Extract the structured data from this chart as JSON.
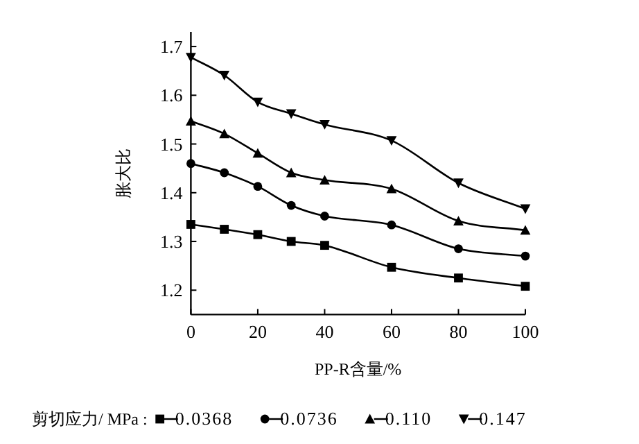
{
  "chart_data": {
    "type": "line",
    "xlabel": "PP-R含量/%",
    "ylabel": "胀大比",
    "legend_title": "剪切应力/ MPa :",
    "legend": "bottom",
    "grid": false,
    "xlim": [
      0,
      100
    ],
    "ylim": [
      1.15,
      1.73
    ],
    "xticks": [
      0,
      20,
      40,
      60,
      80,
      100
    ],
    "yticks": [
      1.2,
      1.3,
      1.4,
      1.5,
      1.6,
      1.7
    ],
    "series": [
      {
        "name": "0.0368",
        "color": "#000000",
        "marker": "square",
        "x": [
          0,
          10,
          20,
          30,
          40,
          60,
          80,
          100
        ],
        "values": [
          1.335,
          1.325,
          1.314,
          1.3,
          1.292,
          1.247,
          1.225,
          1.208
        ]
      },
      {
        "name": "0.0736",
        "color": "#000000",
        "marker": "circle",
        "x": [
          0,
          10,
          20,
          30,
          40,
          60,
          80,
          100
        ],
        "values": [
          1.46,
          1.441,
          1.413,
          1.374,
          1.352,
          1.334,
          1.285,
          1.27
        ]
      },
      {
        "name": "0.110",
        "color": "#000000",
        "marker": "triangle",
        "x": [
          0,
          10,
          20,
          30,
          40,
          60,
          80,
          100
        ],
        "values": [
          1.547,
          1.521,
          1.481,
          1.441,
          1.426,
          1.408,
          1.342,
          1.323
        ]
      },
      {
        "name": "0.147",
        "color": "#000000",
        "marker": "triangle-down",
        "x": [
          0,
          10,
          20,
          30,
          40,
          60,
          80,
          100
        ],
        "values": [
          1.678,
          1.641,
          1.586,
          1.562,
          1.54,
          1.507,
          1.42,
          1.367
        ]
      }
    ]
  }
}
